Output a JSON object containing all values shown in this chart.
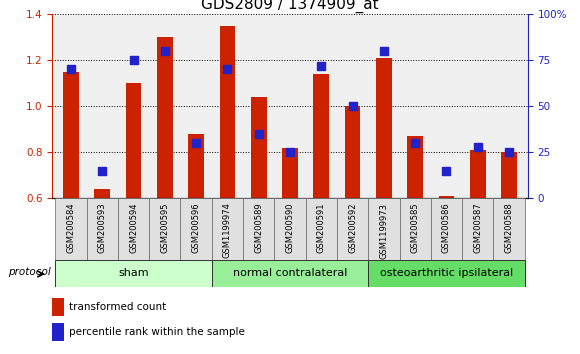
{
  "title": "GDS2809 / 1374909_at",
  "samples": [
    "GSM200584",
    "GSM200593",
    "GSM200594",
    "GSM200595",
    "GSM200596",
    "GSM1199974",
    "GSM200589",
    "GSM200590",
    "GSM200591",
    "GSM200592",
    "GSM1199973",
    "GSM200585",
    "GSM200586",
    "GSM200587",
    "GSM200588"
  ],
  "red_values": [
    1.15,
    0.64,
    1.1,
    1.3,
    0.88,
    1.35,
    1.04,
    0.82,
    1.14,
    1.0,
    1.21,
    0.87,
    0.61,
    0.81,
    0.8
  ],
  "blue_values": [
    70,
    15,
    75,
    80,
    30,
    70,
    35,
    25,
    72,
    50,
    80,
    30,
    15,
    28,
    25
  ],
  "ylim_left": [
    0.6,
    1.4
  ],
  "ylim_right": [
    0,
    100
  ],
  "groups": [
    {
      "label": "sham",
      "start": 0,
      "end": 5
    },
    {
      "label": "normal contralateral",
      "start": 5,
      "end": 10
    },
    {
      "label": "osteoarthritic ipsilateral",
      "start": 10,
      "end": 15
    }
  ],
  "group_colors": [
    "#ccffcc",
    "#99ee99",
    "#66dd66"
  ],
  "red_color": "#cc2200",
  "blue_color": "#2222cc",
  "bar_width": 0.5,
  "dot_size": 28,
  "left_ticks": [
    0.6,
    0.8,
    1.0,
    1.2,
    1.4
  ],
  "right_ticks": [
    0,
    25,
    50,
    75,
    100
  ],
  "legend_red": "transformed count",
  "legend_blue": "percentile rank within the sample",
  "protocol_label": "protocol",
  "title_fontsize": 11,
  "tick_fontsize": 7.5,
  "sample_fontsize": 6.0,
  "group_fontsize": 8.0,
  "legend_fontsize": 7.5
}
